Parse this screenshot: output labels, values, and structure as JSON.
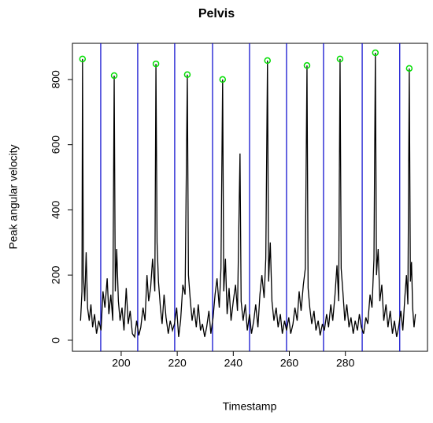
{
  "chart_data": {
    "type": "line",
    "title": "Pelvis",
    "x_label": "Timestamp",
    "y_label": "Peak angular velocity",
    "color": "#000000",
    "x": [
      185.5,
      186,
      186.2,
      186.5,
      187,
      187.5,
      188,
      188.6,
      189.2,
      189.8,
      190.5,
      191.2,
      192,
      192.8,
      193.5,
      194.2,
      195,
      195.6,
      196.3,
      197,
      197.5,
      197.9,
      198.4,
      199,
      199.6,
      200.3,
      201,
      201.8,
      202.5,
      203.2,
      204,
      204.8,
      205.5,
      206.3,
      207,
      207.8,
      208.5,
      209.2,
      209.8,
      210.5,
      211.2,
      212,
      212.4,
      212.8,
      213.3,
      214,
      214.6,
      215.3,
      216,
      216.8,
      217.5,
      218.3,
      219,
      219.8,
      220.5,
      221.2,
      222,
      222.8,
      223.6,
      224,
      224.6,
      225.3,
      226,
      226.8,
      227.5,
      228.3,
      229,
      229.8,
      230.5,
      231.3,
      232,
      232.8,
      233.5,
      234.2,
      235,
      235.6,
      236.2,
      236.6,
      237.2,
      237.8,
      238.5,
      239.2,
      240,
      240.8,
      241.5,
      242.4,
      242.8,
      243.5,
      244.3,
      245,
      245.8,
      246.5,
      247.3,
      248,
      248.8,
      249.5,
      250.2,
      251,
      251.6,
      252.2,
      252.6,
      253.2,
      253.8,
      254.5,
      255.3,
      256,
      256.8,
      257.5,
      258.3,
      259,
      259.8,
      260.5,
      261.3,
      262,
      262.8,
      263.5,
      264.2,
      265,
      265.7,
      266.3,
      266.7,
      267.3,
      268,
      268.8,
      269.5,
      270.3,
      271,
      271.8,
      272.5,
      273.3,
      274,
      274.8,
      275.5,
      276.3,
      277,
      277.6,
      278.1,
      278.5,
      279.1,
      279.8,
      280.5,
      281.3,
      282,
      282.8,
      283.5,
      284.3,
      285,
      285.7,
      286.5,
      287.3,
      288,
      288.8,
      289.5,
      290.2,
      290.7,
      291.1,
      291.7,
      292.3,
      293,
      293.7,
      294.5,
      295.2,
      296,
      296.8,
      297.5,
      298.3,
      299,
      299.8,
      300.5,
      301.2,
      301.8,
      302.3,
      302.8,
      303.2,
      303.6,
      304,
      304.5,
      305
    ],
    "values": [
      60,
      150,
      863,
      200,
      120,
      270,
      100,
      60,
      110,
      40,
      80,
      20,
      60,
      30,
      150,
      100,
      190,
      80,
      140,
      60,
      812,
      150,
      280,
      120,
      60,
      100,
      30,
      160,
      50,
      90,
      20,
      10,
      60,
      15,
      40,
      100,
      60,
      200,
      120,
      160,
      250,
      150,
      848,
      300,
      180,
      100,
      50,
      140,
      70,
      20,
      60,
      30,
      50,
      100,
      10,
      60,
      170,
      140,
      815,
      200,
      130,
      60,
      100,
      40,
      110,
      30,
      50,
      10,
      40,
      90,
      20,
      70,
      140,
      190,
      100,
      220,
      800,
      150,
      250,
      80,
      160,
      60,
      120,
      170,
      90,
      573,
      120,
      60,
      110,
      30,
      80,
      20,
      60,
      110,
      40,
      140,
      200,
      130,
      250,
      858,
      180,
      300,
      120,
      60,
      100,
      40,
      80,
      20,
      60,
      30,
      70,
      20,
      50,
      100,
      60,
      150,
      90,
      170,
      220,
      843,
      160,
      100,
      50,
      90,
      30,
      60,
      15,
      50,
      30,
      80,
      40,
      110,
      60,
      140,
      230,
      120,
      863,
      220,
      150,
      60,
      110,
      40,
      70,
      20,
      60,
      30,
      80,
      40,
      20,
      70,
      50,
      140,
      100,
      250,
      882,
      200,
      280,
      120,
      170,
      60,
      110,
      40,
      90,
      20,
      60,
      10,
      40,
      90,
      30,
      130,
      200,
      110,
      834,
      180,
      240,
      100,
      40,
      80
    ],
    "peaks": {
      "color": "#00dd00",
      "x": [
        186.2,
        197.5,
        212.4,
        223.6,
        236.2,
        252.2,
        266.3,
        278.1,
        290.7,
        302.8
      ],
      "values": [
        863,
        812,
        848,
        815,
        800,
        858,
        843,
        863,
        882,
        834
      ]
    },
    "vlines": {
      "color": "#0000cc",
      "x": [
        192.7,
        205.9,
        219.1,
        232.6,
        245.8,
        259.0,
        272.2,
        286.0,
        299.4
      ]
    },
    "xlim": [
      182.6,
      309.3
    ],
    "ylim": [
      -34,
      911
    ],
    "xticks": [
      200,
      220,
      240,
      260,
      280
    ],
    "yticks": [
      0,
      200,
      400,
      600,
      800
    ]
  }
}
